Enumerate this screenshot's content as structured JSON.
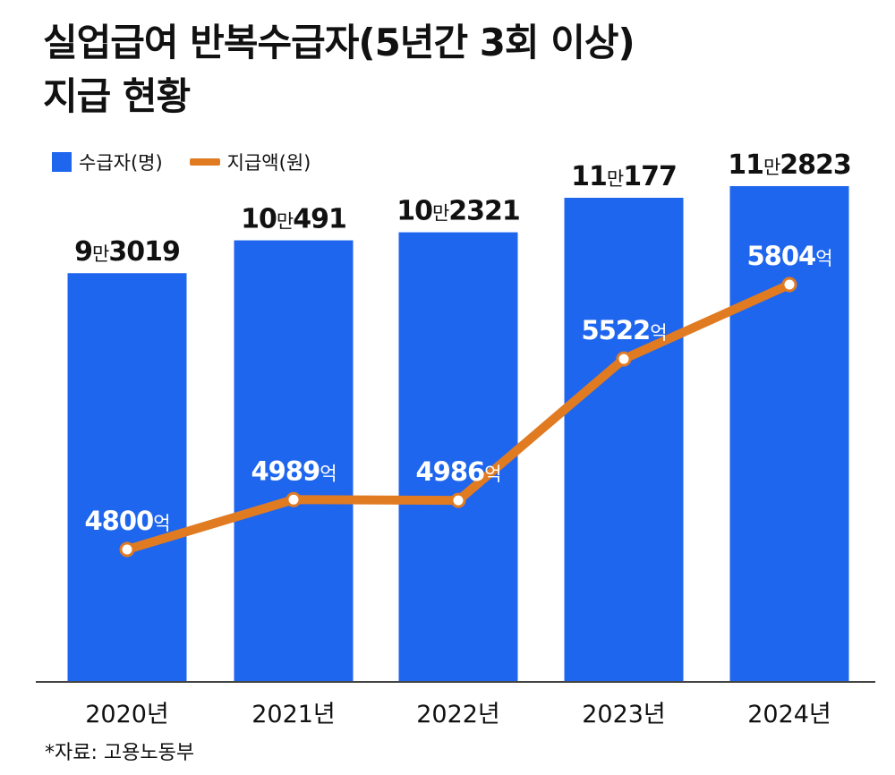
{
  "title": {
    "line1": "실업급여 반복수급자(5년간 3회 이상)",
    "line2": "지급 현황"
  },
  "legend": {
    "recipients": "수급자(명)",
    "amount": "지급액(원)"
  },
  "source": "*자료: 고용노동부",
  "colors": {
    "bar": "#1f66ee",
    "line": "#e07b22",
    "marker_fill": "#ffffff",
    "bar_label_text": "#111111",
    "line_label_text": "#ffffff"
  },
  "chart_data": {
    "type": "bar",
    "categories": [
      "2020년",
      "2021년",
      "2022년",
      "2023년",
      "2024년"
    ],
    "series": [
      {
        "name": "수급자(명)",
        "type": "bar",
        "values": [
          93019,
          100491,
          102321,
          110177,
          112823
        ],
        "labels": [
          {
            "num1": "9",
            "unit": "만",
            "num2": "3019"
          },
          {
            "num1": "10",
            "unit": "만",
            "num2": "491"
          },
          {
            "num1": "10",
            "unit": "만",
            "num2": "2321"
          },
          {
            "num1": "11",
            "unit": "만",
            "num2": "177"
          },
          {
            "num1": "11",
            "unit": "만",
            "num2": "2823"
          }
        ]
      },
      {
        "name": "지급액(원)",
        "type": "line",
        "values": [
          4800,
          4989,
          4986,
          5522,
          5804
        ],
        "labels": [
          {
            "num": "4800",
            "unit": "억"
          },
          {
            "num": "4989",
            "unit": "억"
          },
          {
            "num": "4986",
            "unit": "억"
          },
          {
            "num": "5522",
            "unit": "억"
          },
          {
            "num": "5804",
            "unit": "억"
          }
        ]
      }
    ],
    "grid": false
  }
}
